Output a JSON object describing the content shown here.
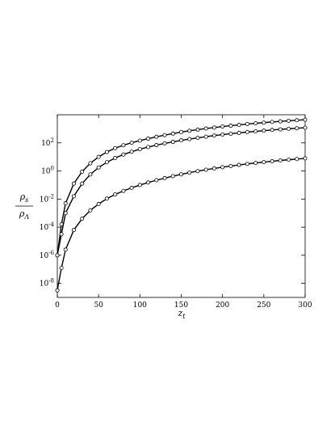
{
  "chart_data": {
    "type": "line",
    "xlabel": "z_t",
    "ylabel_num": "ρ_s",
    "ylabel_den": "ρ_Λ",
    "xlim": [
      0,
      300
    ],
    "ylim_log10": [
      -9,
      4
    ],
    "yscale": "log",
    "grid": false,
    "legend": "none",
    "x_ticks": [
      0,
      50,
      100,
      150,
      200,
      250,
      300
    ],
    "y_tick_exponents": [
      -8,
      -6,
      -4,
      -2,
      0,
      2
    ],
    "y_tick_labels": [
      "10^-8",
      "10^-6",
      "10^-4",
      "10^-2",
      "10^0",
      "10^2"
    ],
    "line_color": "#000000",
    "marker": "open-circle",
    "series": [
      {
        "x": [
          0,
          5,
          10,
          20,
          30,
          40,
          50,
          60,
          70,
          80,
          90,
          100,
          110,
          120,
          130,
          140,
          150,
          160,
          170,
          180,
          190,
          200,
          210,
          220,
          230,
          240,
          250,
          260,
          270,
          280,
          290,
          300
        ],
        "y_log10": [
          -6.0,
          -3.8,
          -2.3,
          -0.9,
          -0.05,
          0.55,
          1.0,
          1.35,
          1.62,
          1.83,
          2.01,
          2.16,
          2.3,
          2.43,
          2.55,
          2.66,
          2.77,
          2.86,
          2.94,
          3.02,
          3.09,
          3.16,
          3.22,
          3.28,
          3.34,
          3.39,
          3.44,
          3.49,
          3.53,
          3.57,
          3.61,
          3.65
        ]
      },
      {
        "x": [
          0,
          5,
          10,
          20,
          30,
          40,
          50,
          60,
          70,
          80,
          90,
          100,
          110,
          120,
          130,
          140,
          150,
          160,
          170,
          180,
          190,
          200,
          210,
          220,
          230,
          240,
          250,
          260,
          270,
          280,
          290,
          300
        ],
        "y_log10": [
          -6.0,
          -4.5,
          -3.0,
          -1.8,
          -0.9,
          -0.25,
          0.25,
          0.62,
          0.92,
          1.17,
          1.37,
          1.55,
          1.7,
          1.84,
          1.96,
          2.07,
          2.18,
          2.27,
          2.36,
          2.44,
          2.52,
          2.59,
          2.65,
          2.71,
          2.77,
          2.82,
          2.87,
          2.92,
          2.96,
          3.0,
          3.04,
          3.08
        ]
      },
      {
        "x": [
          0,
          5,
          10,
          20,
          30,
          40,
          50,
          60,
          70,
          80,
          90,
          100,
          110,
          120,
          130,
          140,
          150,
          160,
          170,
          180,
          190,
          200,
          210,
          220,
          230,
          240,
          250,
          260,
          270,
          280,
          290,
          300
        ],
        "y_log10": [
          -8.5,
          -6.9,
          -5.6,
          -4.2,
          -3.4,
          -2.8,
          -2.35,
          -1.97,
          -1.67,
          -1.42,
          -1.2,
          -1.0,
          -0.82,
          -0.66,
          -0.51,
          -0.37,
          -0.24,
          -0.12,
          -0.01,
          0.09,
          0.18,
          0.27,
          0.35,
          0.43,
          0.5,
          0.57,
          0.63,
          0.69,
          0.75,
          0.8,
          0.85,
          0.9
        ]
      }
    ]
  }
}
